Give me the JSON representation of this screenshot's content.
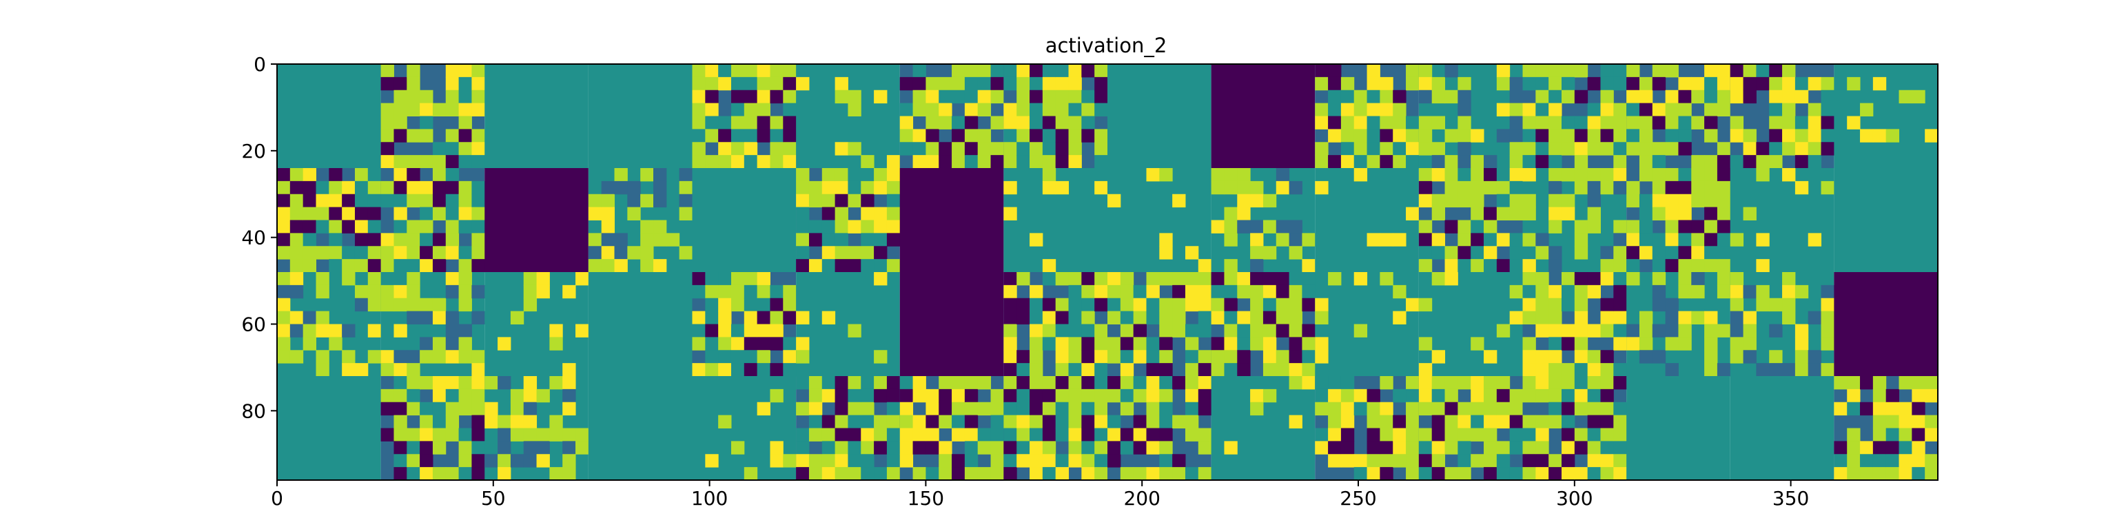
{
  "chart_data": {
    "type": "heatmap",
    "title": "activation_2",
    "xlabel": "",
    "ylabel": "",
    "xlim": [
      0,
      384
    ],
    "ylim": [
      96,
      0
    ],
    "x_ticks": [
      0,
      50,
      100,
      150,
      200,
      250,
      300,
      350
    ],
    "y_ticks": [
      0,
      20,
      40,
      60,
      80
    ],
    "grid": false,
    "colormap": "viridis",
    "tile_size": 24,
    "rows": 4,
    "cols": 16,
    "tiles": [
      [
        "flat",
        "bright",
        "flat",
        "flat",
        "bright",
        "sparse",
        "bright",
        "bright",
        "flat",
        "dead",
        "bright",
        "mid",
        "bright",
        "bright",
        "bright",
        "sparse"
      ],
      [
        "bright",
        "bright",
        "dead",
        "mid",
        "flat",
        "bright",
        "dead",
        "sparse",
        "sparse",
        "mid",
        "sparse",
        "bright",
        "mid",
        "bright",
        "sparse",
        "flat"
      ],
      [
        "mid",
        "mid",
        "sparse",
        "flat",
        "bright",
        "sparse",
        "dead",
        "bright",
        "bright",
        "bright",
        "sparse",
        "sparse",
        "bright",
        "mid",
        "mid",
        "dead"
      ],
      [
        "flat",
        "bright",
        "mid",
        "flat",
        "sparse",
        "bright",
        "bright",
        "bright",
        "bright",
        "sparse",
        "bright",
        "bright",
        "bright",
        "flat",
        "flat",
        "bright"
      ]
    ],
    "colors": {
      "flat": "#21918c",
      "dead": "#440154",
      "dark": "#31688e",
      "bright": "#b5de2b",
      "yellow": "#fde725"
    }
  }
}
